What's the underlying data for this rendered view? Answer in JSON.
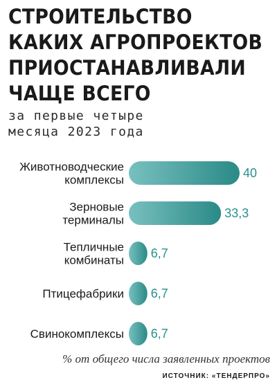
{
  "title_lines": [
    "СТРОИТЕЛЬСТВО",
    "КАКИХ АГРОПРОЕКТОВ",
    "ПРИОСТАНАВЛИВАЛИ",
    "ЧАЩЕ ВСЕГО"
  ],
  "subtitle_lines": [
    "за первые четыре",
    "месяца 2023 года"
  ],
  "footnote": "% от общего числа заявленных проектов",
  "source": "ИСТОЧНИК: «ТЕНДЕРПРО»",
  "chart_data": {
    "type": "bar",
    "orientation": "horizontal",
    "categories": [
      [
        "Животноводческие",
        "комплексы"
      ],
      [
        "Зерновые",
        "терминалы"
      ],
      [
        "Тепличные",
        "комбинаты"
      ],
      [
        "Птицефабрики"
      ],
      [
        "Свинокомплексы"
      ]
    ],
    "values": [
      40,
      33.3,
      6.7,
      6.7,
      6.7
    ],
    "value_labels": [
      "40",
      "33,3",
      "6,7",
      "6,7",
      "6,7"
    ],
    "xlim": [
      0,
      40
    ],
    "colors": {
      "bar_start": "#78c0c0",
      "bar_end": "#2a8a86",
      "value_text": "#2a9090"
    },
    "grid": false,
    "legend": "none"
  }
}
